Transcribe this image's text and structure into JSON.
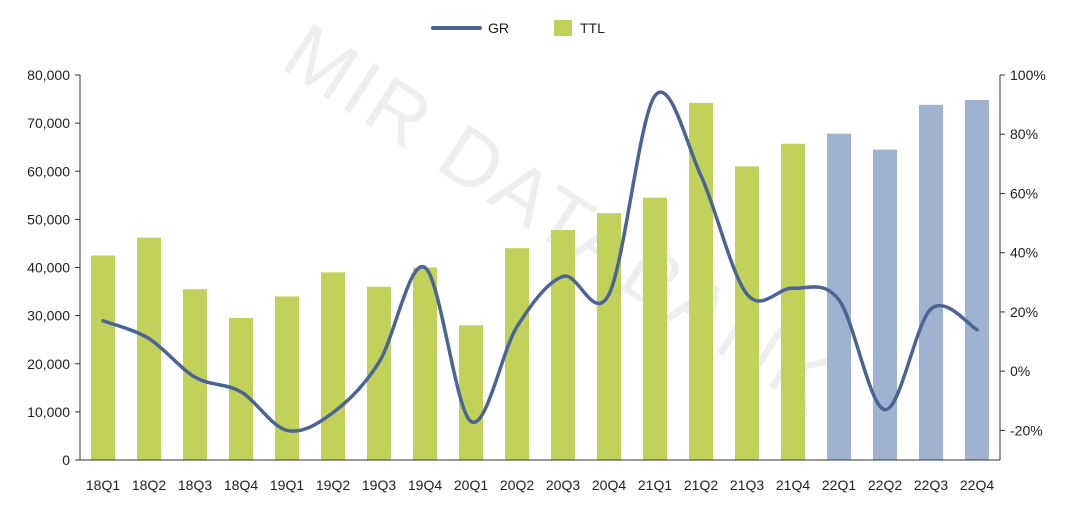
{
  "watermark": "MIR DATABANK",
  "colors": {
    "actual_bar": "#c2d15a",
    "forecast_bar": "#9fb3d1",
    "line": "#4a6496",
    "axis": "#333333"
  },
  "chart_data": {
    "type": "bar",
    "title": "",
    "legend": {
      "position": "top-center",
      "items": [
        "GR",
        "TTL"
      ]
    },
    "categories": [
      "18Q1",
      "18Q2",
      "18Q3",
      "18Q4",
      "19Q1",
      "19Q2",
      "19Q3",
      "19Q4",
      "20Q1",
      "20Q2",
      "20Q3",
      "20Q4",
      "21Q1",
      "21Q2",
      "21Q3",
      "21Q4",
      "22Q1",
      "22Q2",
      "22Q3",
      "22Q4"
    ],
    "series": [
      {
        "name": "TTL",
        "type": "bar",
        "axis": "left",
        "values": [
          42500,
          46200,
          35500,
          29500,
          34000,
          39000,
          36000,
          40000,
          28000,
          44000,
          47800,
          51300,
          54500,
          74200,
          61000,
          65700,
          67800,
          64500,
          73800,
          74800
        ],
        "forecast_from_index": 16
      },
      {
        "name": "GR",
        "type": "line",
        "axis": "right",
        "unit": "%",
        "values": [
          17,
          11,
          -2,
          -7,
          -20,
          -14,
          3,
          35,
          -17,
          15,
          32,
          26,
          93,
          66,
          26,
          28,
          24,
          -13,
          21,
          14
        ]
      }
    ],
    "y_left": {
      "min": 0,
      "max": 80000,
      "ticks": [
        "0",
        "10,000",
        "20,000",
        "30,000",
        "40,000",
        "50,000",
        "60,000",
        "70,000",
        "80,000"
      ]
    },
    "y_right": {
      "min": -30,
      "max": 100,
      "ticks": [
        "-20%",
        "0%",
        "20%",
        "40%",
        "60%",
        "80%",
        "100%"
      ]
    },
    "grid": false
  }
}
